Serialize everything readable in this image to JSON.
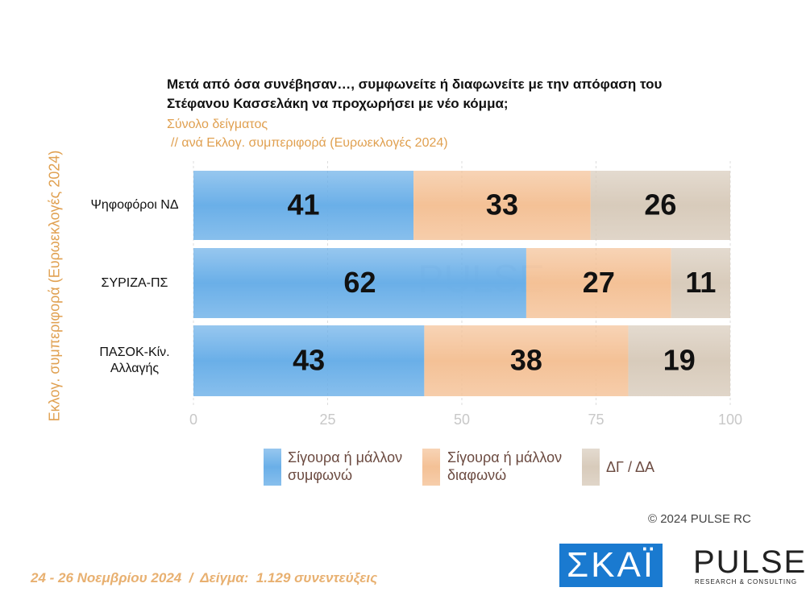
{
  "header": {
    "title": "Μετά από όσα συνέβησαν…, συμφωνείτε ή διαφωνείτε με την απόφαση του Στέφανου Κασσελάκη να προχωρήσει με νέο κόμμα;",
    "subtitle": "Σύνολο δείγματος",
    "subtitle2": "// ανά Εκλογ. συμπεριφορά (Ευρωεκλογές 2024)"
  },
  "chart_data": {
    "type": "stacked_bar_horizontal",
    "y_label": "Εκλογ. συμπεριφορά (Ευρωεκλογές 2024)",
    "categories": [
      "Ψηφοφόροι ΝΔ",
      "ΣΥΡΙΖΑ-ΠΣ",
      "ΠΑΣΟΚ-Κίν. Αλλαγής"
    ],
    "series": [
      {
        "name": "Σίγουρα ή μάλλον συμφωνώ",
        "color": "#6aafe8",
        "values": [
          41,
          62,
          43
        ]
      },
      {
        "name": "Σίγουρα ή μάλλον διαφωνώ",
        "color": "#f4c196",
        "values": [
          33,
          27,
          38
        ]
      },
      {
        "name": "ΔΓ / ΔΑ",
        "color": "#d8cbbb",
        "values": [
          26,
          11,
          19
        ]
      }
    ],
    "xlim": [
      0,
      100
    ],
    "xticks": [
      0,
      25,
      50,
      75,
      100
    ],
    "grid": true
  },
  "footer": {
    "copyright": "©  2024  PULSE RC",
    "fieldwork": "24 - 26 Νοεμβρίου 2024  /  Δείγμα:  1.129 συνεντεύξεις"
  },
  "logos": {
    "skai": "ΣΚΑΪ",
    "pulse": "PULSE",
    "pulse_tagline": "RESEARCH & CONSULTING"
  }
}
